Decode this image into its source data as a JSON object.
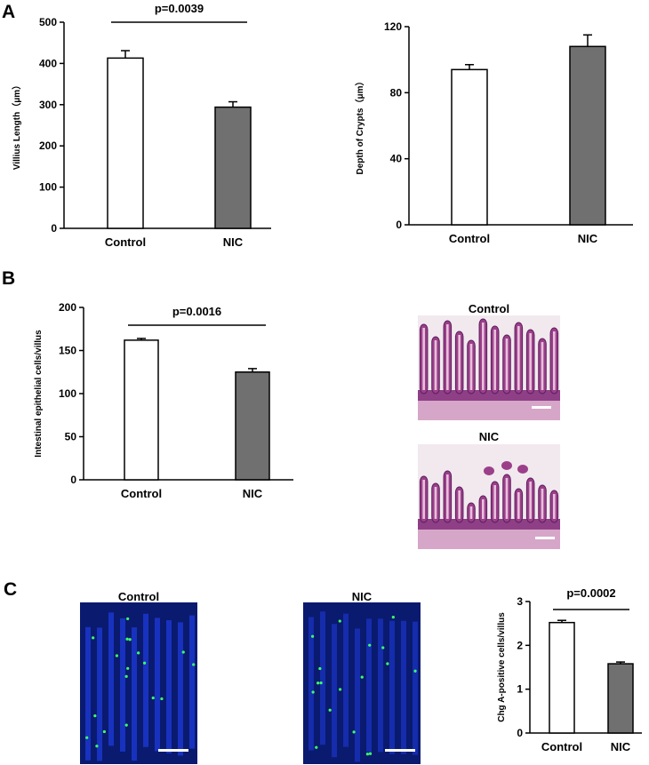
{
  "panels": {
    "a": "A",
    "b": "B",
    "c": "C"
  },
  "images": {
    "he_control_title": "Control",
    "he_nic_title": "NIC",
    "if_control_title": "Control",
    "if_nic_title": "NIC"
  },
  "colors": {
    "control_fill": "#ffffff",
    "nic_fill": "#707070",
    "he_stain": "#9b3f8a",
    "if_background": "#0a1a6e",
    "if_marker": "#3cff6a"
  },
  "chart_data": [
    {
      "id": "villus_length",
      "type": "bar",
      "categories": [
        "Control",
        "NIC"
      ],
      "values": [
        413,
        294
      ],
      "errors": [
        18,
        13
      ],
      "ylabel": "Villius Length（μm）",
      "ylim": [
        0,
        500
      ],
      "yticks": [
        "0",
        "100",
        "200",
        "300",
        "400",
        "500"
      ],
      "pvalue": "p=0.0039"
    },
    {
      "id": "crypt_depth",
      "type": "bar",
      "categories": [
        "Control",
        "NIC"
      ],
      "values": [
        94,
        108
      ],
      "errors": [
        3,
        7
      ],
      "ylabel": "Depth of Crypts（μm）",
      "ylim": [
        0,
        120
      ],
      "yticks": [
        "0",
        "40",
        "80",
        "120"
      ],
      "pvalue": ""
    },
    {
      "id": "epithelial_cells",
      "type": "bar",
      "categories": [
        "Control",
        "NIC"
      ],
      "values": [
        162,
        125
      ],
      "errors": [
        2,
        4
      ],
      "ylabel": "Intestinal epithelial cells/villus",
      "ylim": [
        0,
        200
      ],
      "yticks": [
        "0",
        "50",
        "100",
        "150",
        "200"
      ],
      "pvalue": "p=0.0016"
    },
    {
      "id": "chga_cells",
      "type": "bar",
      "categories": [
        "Control",
        "NIC"
      ],
      "values": [
        2.52,
        1.58
      ],
      "errors": [
        0.05,
        0.04
      ],
      "ylabel": "Chg A-positive cells/villus",
      "ylim": [
        0,
        3
      ],
      "yticks": [
        "0",
        "1",
        "2",
        "3"
      ],
      "pvalue": "p=0.0002"
    }
  ]
}
